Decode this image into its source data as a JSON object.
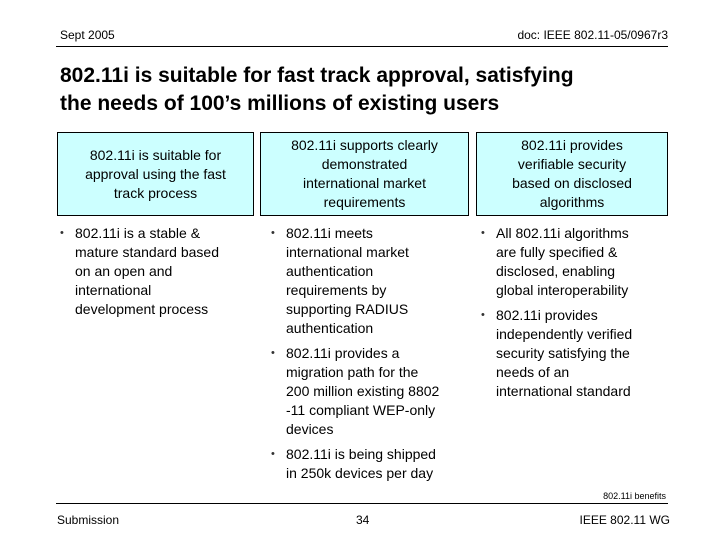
{
  "header": {
    "date": "Sept 2005",
    "doc": "doc: IEEE 802.11-05/0967r3"
  },
  "title": {
    "line1": "802.11i is suitable for fast track approval, satisfying",
    "line2": "the needs of 100’s millions of existing users"
  },
  "boxes": [
    {
      "lines": [
        "802.11i is suitable for",
        "approval using the fast",
        "track process"
      ]
    },
    {
      "lines": [
        "802.11i supports clearly",
        "demonstrated",
        "international market",
        "requirements"
      ]
    },
    {
      "lines": [
        "802.11i provides",
        "verifiable security",
        "based on disclosed",
        "algorithms"
      ]
    }
  ],
  "bullet_symbol": "•",
  "columns": [
    {
      "bullets": [
        {
          "lines": [
            "802.11i is a stable &",
            "mature standard based",
            "on an open and",
            "international",
            "development process"
          ]
        }
      ]
    },
    {
      "bullets": [
        {
          "lines": [
            "802.11i meets",
            "international market",
            "authentication",
            "requirements by",
            "supporting RADIUS",
            "authentication"
          ]
        },
        {
          "lines": [
            "802.11i provides a",
            "migration path for the",
            "200 million existing 8802",
            "-11 compliant WEP-only",
            "devices"
          ]
        },
        {
          "lines": [
            "802.11i is being shipped",
            "in 250k devices per day"
          ]
        }
      ]
    },
    {
      "bullets": [
        {
          "lines": [
            "All 802.11i algorithms",
            "are fully specified &",
            "disclosed, enabling",
            "global interoperability"
          ]
        },
        {
          "lines": [
            "802.11i provides",
            "independently verified",
            "security satisfying the",
            "needs of an",
            "international standard"
          ]
        }
      ]
    }
  ],
  "footnote": "802.11i benefits",
  "footer": {
    "left": "Submission",
    "page": "34",
    "right": "IEEE 802.11 WG"
  }
}
